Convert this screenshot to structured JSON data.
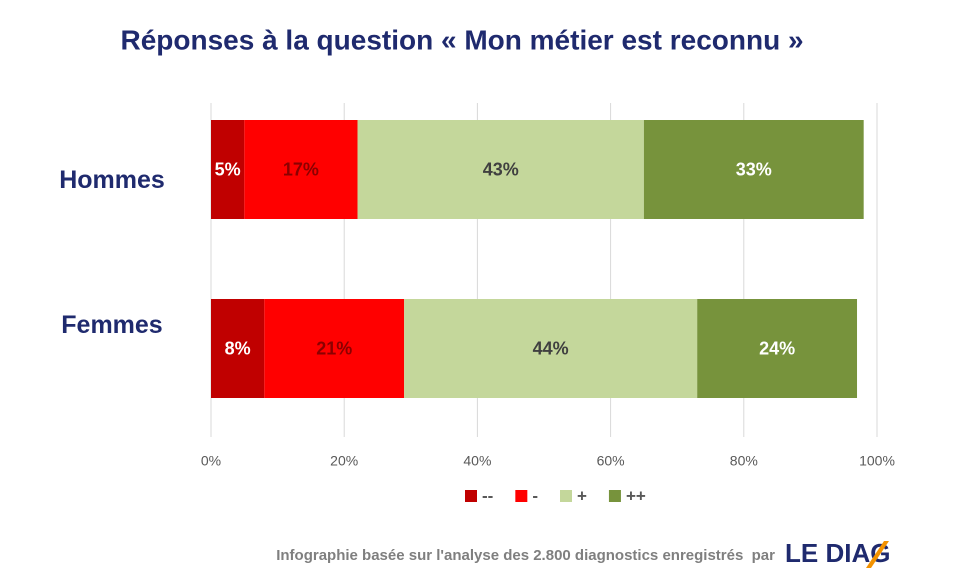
{
  "chart_data": {
    "type": "stacked-barh",
    "title": "Réponses à la question « Mon métier est reconnu »",
    "categories": [
      "Hommes",
      "Femmes"
    ],
    "series": [
      {
        "name": "--",
        "color": "#c00000",
        "label_color": "#ffffff",
        "values": [
          5,
          8
        ],
        "value_labels": [
          "5%",
          "8%"
        ]
      },
      {
        "name": "-",
        "color": "#ff0000",
        "label_color": "#8b0000",
        "values": [
          17,
          21
        ],
        "value_labels": [
          "17%",
          "21%"
        ]
      },
      {
        "name": "+",
        "color": "#c4d79b",
        "label_color": "#404040",
        "values": [
          43,
          44
        ],
        "value_labels": [
          "43%",
          "44%"
        ]
      },
      {
        "name": "++",
        "color": "#77933c",
        "label_color": "#ffffff",
        "values": [
          33,
          24
        ],
        "value_labels": [
          "33%",
          "24%"
        ]
      }
    ],
    "xlim": [
      0,
      100
    ],
    "xticks": [
      {
        "value": 0,
        "label": "0%"
      },
      {
        "value": 20,
        "label": "20%"
      },
      {
        "value": 40,
        "label": "40%"
      },
      {
        "value": 60,
        "label": "60%"
      },
      {
        "value": 80,
        "label": "80%"
      },
      {
        "value": 100,
        "label": "100%"
      }
    ],
    "grid": true,
    "legend": "bottom"
  },
  "footer": "Infographie basée sur l'analyse des 2.800 diagnostics enregistrés  par",
  "logo": "LE DIAG"
}
